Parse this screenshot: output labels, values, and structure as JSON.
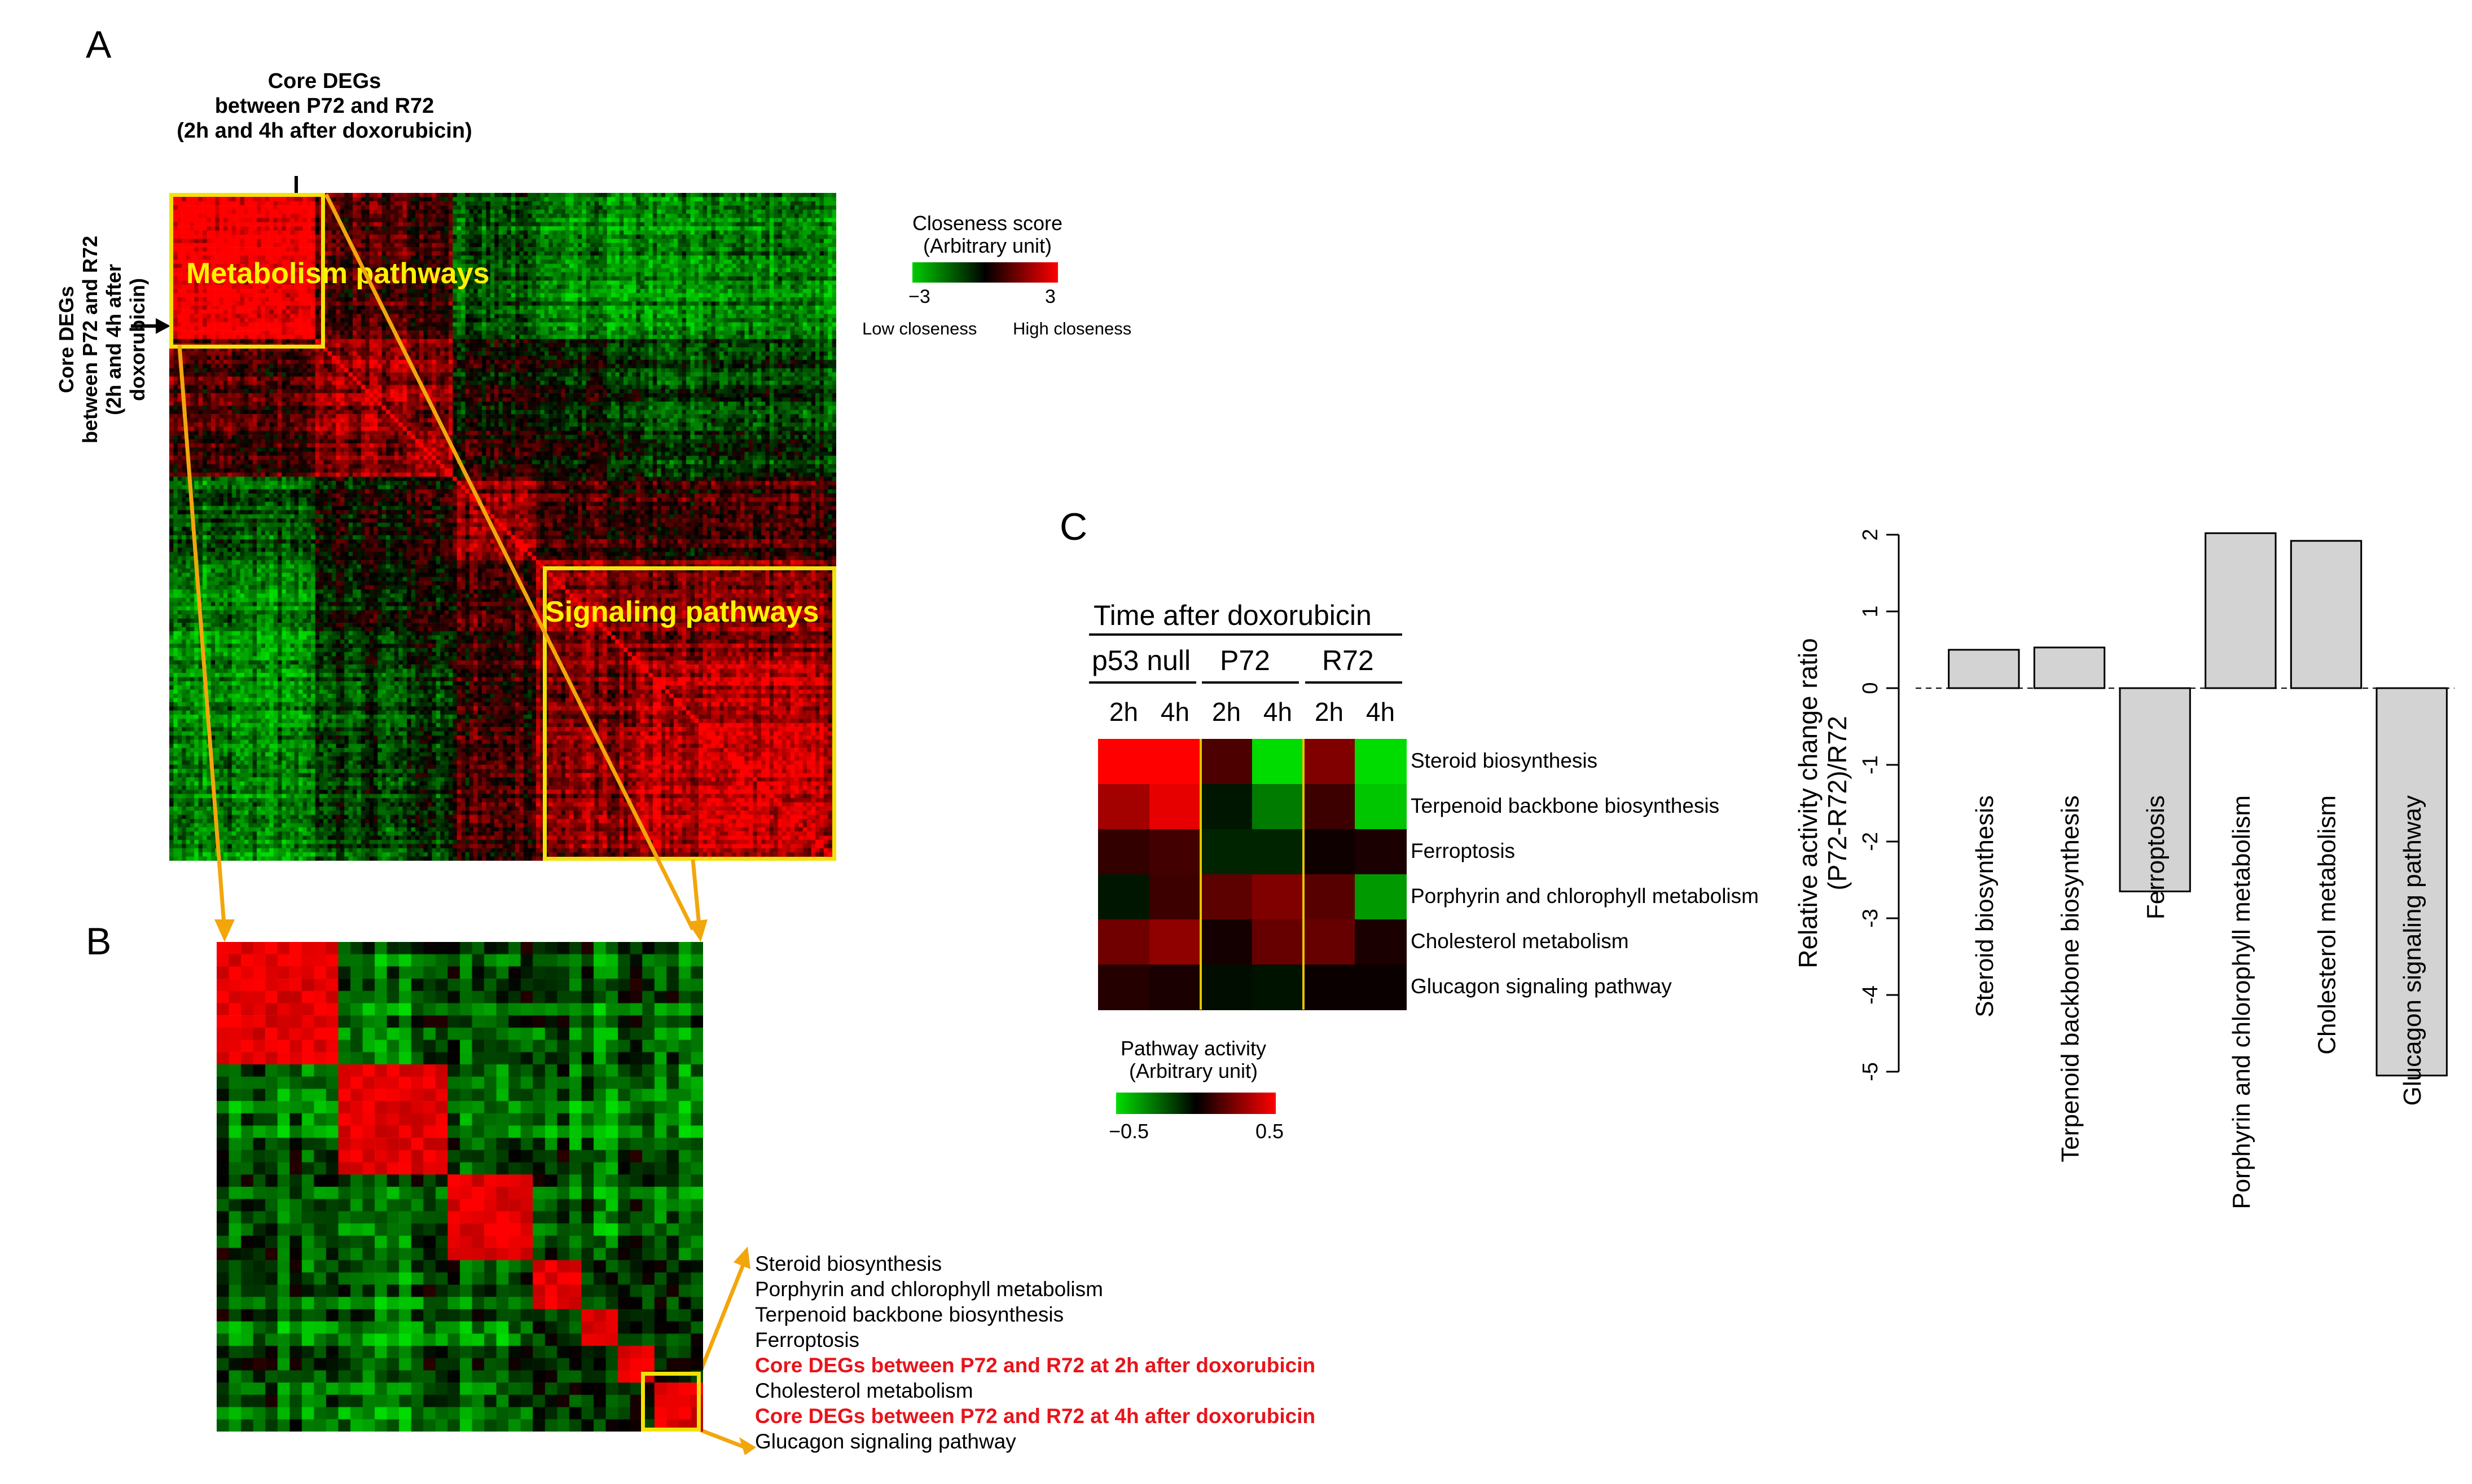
{
  "panels": {
    "a": "A",
    "b": "B",
    "c": "C"
  },
  "panel_a": {
    "core_top_label": [
      "Core DEGs",
      "between P72 and R72",
      "(2h and 4h after doxorubicin)"
    ],
    "core_left_label": [
      "Core DEGs",
      "between P72 and R72",
      "(2h and 4h after",
      "doxorubicin)"
    ],
    "metabolism_label": "Metabolism pathways",
    "signaling_label": "Signaling pathways",
    "legend": {
      "title": "Closeness score",
      "subtitle": "(Arbitrary unit)",
      "min_label": "−3",
      "max_label": "3",
      "low_label": "Low closeness",
      "high_label": "High closeness",
      "color_low": "#00d000",
      "color_mid": "#000000",
      "color_high": "#ff0000"
    }
  },
  "panel_b": {
    "items": [
      {
        "text": "Steroid biosynthesis",
        "core": false
      },
      {
        "text": "Porphyrin and chlorophyll metabolism",
        "core": false
      },
      {
        "text": "Terpenoid backbone biosynthesis",
        "core": false
      },
      {
        "text": "Ferroptosis",
        "core": false
      },
      {
        "text": "Core DEGs between P72 and R72 at 2h after doxorubicin",
        "core": true
      },
      {
        "text": "Cholesterol metabolism",
        "core": false
      },
      {
        "text": "Core DEGs between P72 and R72 at 4h after doxorubicin",
        "core": true
      },
      {
        "text": "Glucagon signaling pathway",
        "core": false
      }
    ]
  },
  "panel_c_heatmap": {
    "header": "Time after doxorubicin",
    "groups": [
      "p53 null",
      "P72",
      "R72"
    ],
    "times": [
      "2h",
      "4h",
      "2h",
      "4h",
      "2h",
      "4h"
    ],
    "legend": {
      "title": "Pathway activity",
      "subtitle": "(Arbitrary unit)",
      "min_label": "−0.5",
      "max_label": "0.5"
    }
  },
  "chart_data": [
    {
      "type": "heatmap",
      "panel": "A",
      "colorbar": {
        "title": "Closeness score",
        "subtitle": "(Arbitrary unit)",
        "min": -3,
        "max": 3
      },
      "blocks": [
        "Metabolism pathways",
        "Signaling pathways"
      ]
    },
    {
      "type": "heatmap",
      "panel": "C",
      "rows": [
        "Steroid biosynthesis",
        "Terpenoid backbone biosynthesis",
        "Ferroptosis",
        "Porphyrin and chlorophyll metabolism",
        "Cholesterol metabolism",
        "Glucagon signaling pathway"
      ],
      "columns": [
        "p53 null 2h",
        "p53 null 4h",
        "P72 2h",
        "P72 4h",
        "R72 2h",
        "R72 4h"
      ],
      "values": [
        [
          0.5,
          0.5,
          0.15,
          -0.5,
          0.25,
          -0.5
        ],
        [
          0.32,
          0.45,
          -0.05,
          -0.28,
          0.12,
          -0.45
        ],
        [
          0.1,
          0.13,
          -0.08,
          -0.08,
          0.03,
          0.05
        ],
        [
          -0.05,
          0.12,
          0.18,
          0.25,
          0.17,
          -0.35
        ],
        [
          0.22,
          0.28,
          0.04,
          0.2,
          0.2,
          0.05
        ],
        [
          0.07,
          0.05,
          -0.03,
          -0.04,
          0.02,
          0.02
        ]
      ],
      "colorbar": {
        "min": -0.5,
        "max": 0.5
      }
    },
    {
      "type": "bar",
      "panel": "C",
      "categories": [
        "Steroid biosynthesis",
        "Terpenoid backbone biosynthesis",
        "Ferroptosis",
        "Porphyrin and chlorophyll metabolism",
        "Cholesterol metabolism",
        "Glucagon signaling pathway"
      ],
      "values": [
        0.5,
        0.53,
        -2.65,
        2.02,
        1.92,
        -5.05
      ],
      "ylabel": "Relative activity change ratio (P72-R72)/R72",
      "ylabel_lines": [
        "Relative activity change ratio",
        "(P72-R72)/R72"
      ],
      "ylim": [
        -5,
        2
      ],
      "yticks": [
        -5,
        -4,
        -3,
        -2,
        -1,
        0,
        1,
        2
      ],
      "bar_color": "#d3d3d3"
    }
  ]
}
